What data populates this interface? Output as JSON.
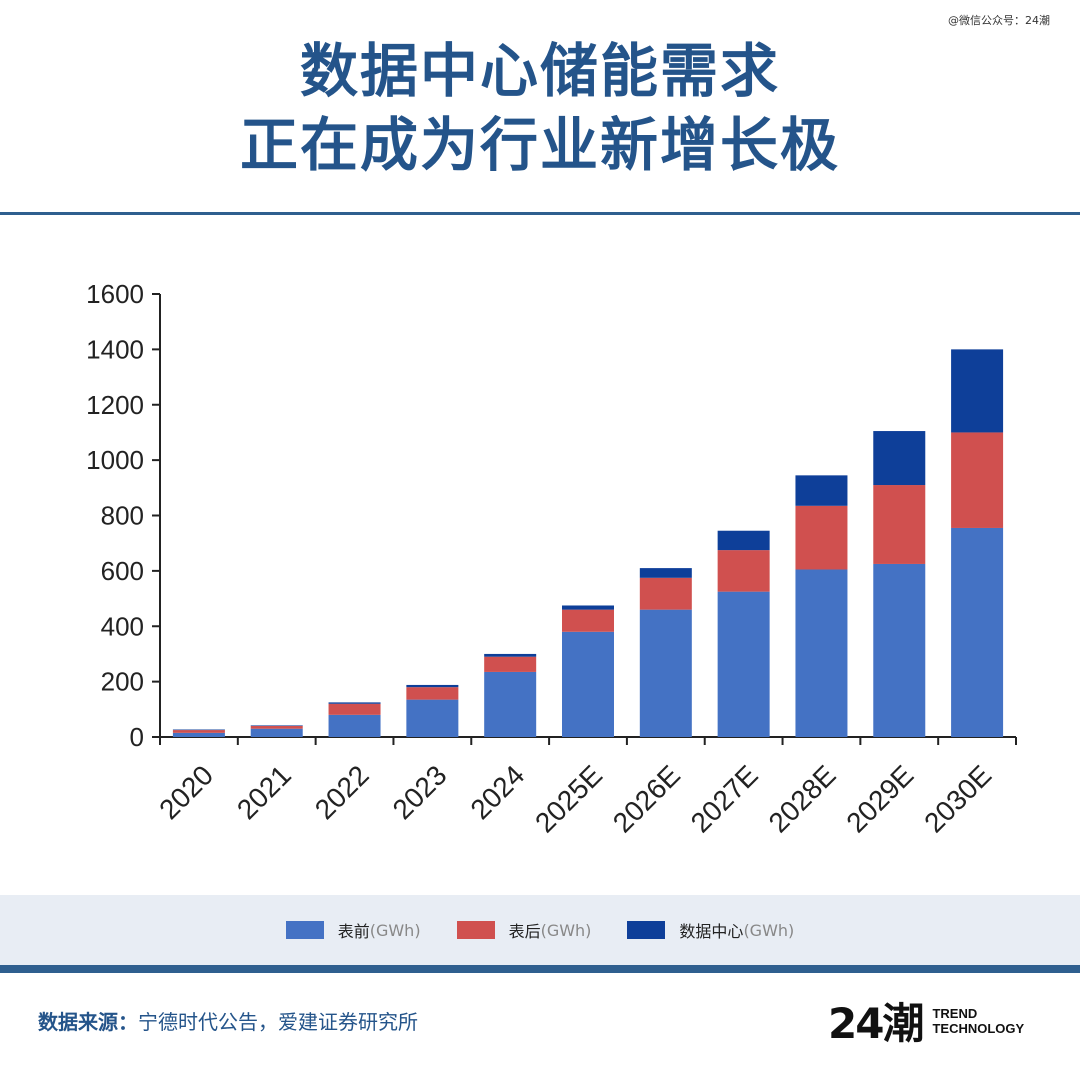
{
  "watermark": "@微信公众号：24潮",
  "title": {
    "line1": "数据中心储能需求",
    "line2": "正在成为行业新增长极"
  },
  "colors": {
    "front": "#4472c4",
    "back": "#d0504f",
    "datacenter": "#0e3f99",
    "title": "#24548a"
  },
  "chart_data": {
    "type": "bar",
    "stacked": true,
    "categories": [
      "2020",
      "2021",
      "2022",
      "2023",
      "2024",
      "2025E",
      "2026E",
      "2027E",
      "2028E",
      "2029E",
      "2030E"
    ],
    "series": [
      {
        "name": "表前(GWh)",
        "color": "#4472c4",
        "values": [
          15,
          30,
          80,
          135,
          235,
          380,
          460,
          525,
          605,
          625,
          755
        ]
      },
      {
        "name": "表后(GWh)",
        "color": "#d0504f",
        "values": [
          10,
          10,
          40,
          45,
          55,
          80,
          115,
          150,
          230,
          285,
          345
        ]
      },
      {
        "name": "数据中心(GWh)",
        "color": "#0e3f99",
        "values": [
          2,
          2,
          5,
          8,
          10,
          15,
          35,
          70,
          110,
          195,
          300
        ]
      }
    ],
    "yticks": [
      0,
      200,
      400,
      600,
      800,
      1000,
      1200,
      1400,
      1600
    ],
    "ylim": [
      0,
      1600
    ],
    "grid": false,
    "legend_position": "bottom"
  },
  "legend": [
    {
      "label": "表前",
      "unit": "(GWh)",
      "color": "#4472c4"
    },
    {
      "label": "表后",
      "unit": "(GWh)",
      "color": "#d0504f"
    },
    {
      "label": "数据中心",
      "unit": "(GWh)",
      "color": "#0e3f99"
    }
  ],
  "source": {
    "label": "数据来源：",
    "text": "宁德时代公告，爱建证券研究所"
  },
  "logo": {
    "mark": "24潮",
    "line1": "TREND",
    "line2": "TECHNOLOGY"
  }
}
